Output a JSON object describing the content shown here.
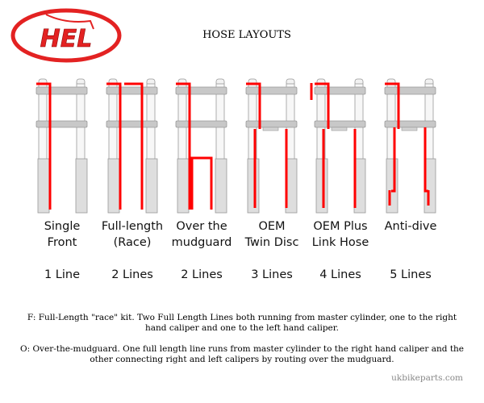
{
  "logo": {
    "text": "HEL"
  },
  "title": "HOSE LAYOUTS",
  "layouts": [
    {
      "name_line1": "Single",
      "name_line2": "Front",
      "count": "1 Line"
    },
    {
      "name_line1": "Full-length",
      "name_line2": "(Race)",
      "count": "2 Lines"
    },
    {
      "name_line1": "Over the",
      "name_line2": "mudguard",
      "count": "2 Lines"
    },
    {
      "name_line1": "OEM",
      "name_line2": "Twin Disc",
      "count": "3 Lines"
    },
    {
      "name_line1": "OEM Plus",
      "name_line2": "Link Hose",
      "count": "4 Lines"
    },
    {
      "name_line1": "Anti-dive",
      "name_line2": "",
      "count": "5 Lines"
    }
  ],
  "notes": {
    "f": "F: Full-Length \"race\" kit. Two Full Length Lines both running from master cylinder, one to the right hand caliper and one to the left hand caliper.",
    "o": "O: Over-the-mudguard. One full length line runs from master cylinder to the right hand caliper and the other connecting right and left calipers by routing over the mudguard."
  },
  "credit": "ukbikeparts.com",
  "colors": {
    "hose": "#ff0000",
    "fork": "#c8c8c8",
    "logo": "#e32222"
  }
}
